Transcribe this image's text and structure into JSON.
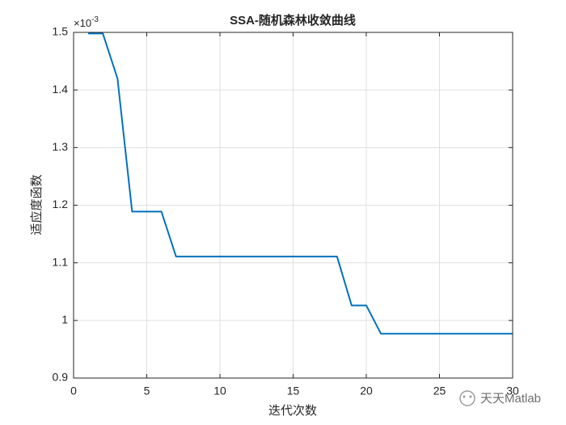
{
  "chart_data": {
    "type": "line",
    "title": "SSA-随机森林收敛曲线",
    "x_label": "迭代次数",
    "y_label": "适应度函数",
    "y_exponent_base": "×10",
    "y_exponent": "-3",
    "x": [
      1,
      2,
      3,
      4,
      5,
      6,
      7,
      8,
      9,
      10,
      11,
      12,
      13,
      14,
      15,
      16,
      17,
      18,
      19,
      20,
      21,
      22,
      23,
      24,
      25,
      26,
      27,
      28,
      29,
      30
    ],
    "values": [
      1.498,
      1.498,
      1.42,
      1.189,
      1.189,
      1.189,
      1.111,
      1.111,
      1.111,
      1.111,
      1.111,
      1.111,
      1.111,
      1.111,
      1.111,
      1.111,
      1.111,
      1.111,
      1.026,
      1.026,
      0.977,
      0.977,
      0.977,
      0.977,
      0.977,
      0.977,
      0.977,
      0.977,
      0.977,
      0.977
    ],
    "color": "#0072bd",
    "xlim": [
      0,
      30
    ],
    "xticks": [
      0,
      5,
      10,
      15,
      20,
      25,
      30
    ],
    "ylim": [
      0.9,
      1.5
    ],
    "yticks": [
      0.9,
      1,
      1.1,
      1.2,
      1.3,
      1.4,
      1.5
    ],
    "grid": true,
    "watermark": "天天Matlab"
  }
}
